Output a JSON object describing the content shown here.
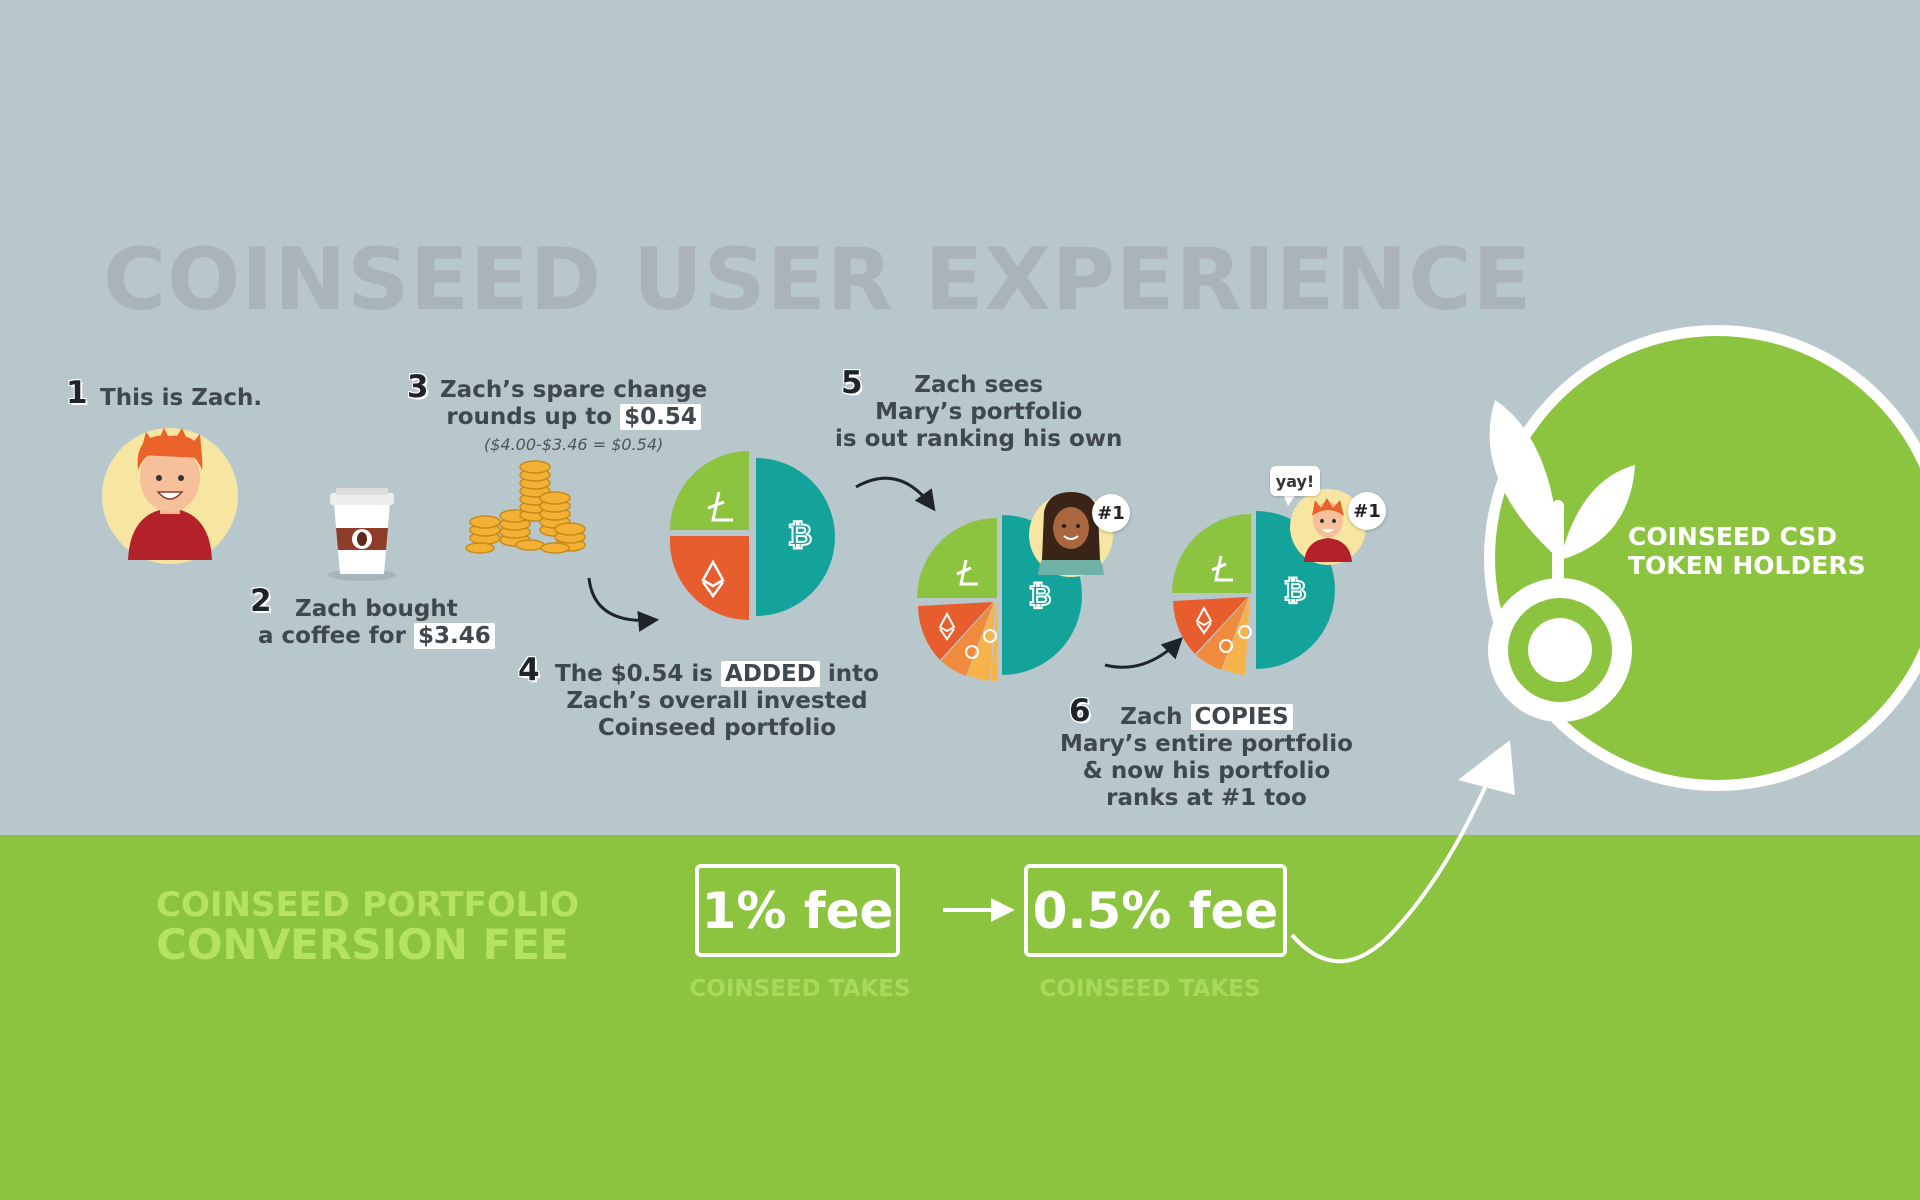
{
  "title": "COINSEED USER EXPERIENCE",
  "colors": {
    "background_top": "#b8c7cc",
    "background_bottom": "#8cc43f",
    "litecoin_green": "#8cc43f",
    "bitcoin_teal": "#14a39a",
    "ethereum_orange": "#e85d2e",
    "dash_orange": "#f08a3c",
    "monero_yellow": "#f6b24b",
    "text_dark": "#3f484c",
    "fee_label": "#b5e35f"
  },
  "steps": [
    {
      "number": "1",
      "lines": [
        "This is Zach."
      ]
    },
    {
      "number": "2",
      "lines": [
        "Zach bought",
        "a coffee for"
      ],
      "highlight": "$3.46"
    },
    {
      "number": "3",
      "lines": [
        "Zach’s spare change",
        "rounds up to"
      ],
      "highlight": "$0.54",
      "note": "($4.00-$3.46 = $0.54)"
    },
    {
      "number": "4",
      "line1_pre": "The $0.54 is",
      "line1_highlight": "ADDED",
      "line1_post": "into",
      "lines": [
        "Zach’s overall invested",
        "Coinseed portfolio"
      ]
    },
    {
      "number": "5",
      "lines": [
        "Zach sees",
        "Mary’s portfolio",
        "is out ranking his own"
      ]
    },
    {
      "number": "6",
      "line1_pre": "Zach",
      "line1_highlight": "COPIES",
      "lines": [
        "Mary’s entire portfolio",
        "& now his portfolio",
        "ranks at #1 too"
      ]
    }
  ],
  "badges": {
    "mary_rank": "#1",
    "zach_rank": "#1",
    "speech": "yay!"
  },
  "icons": [
    "zach-avatar-icon",
    "coffee-cup-icon",
    "coin-stack-icon",
    "litecoin-icon",
    "bitcoin-icon",
    "ethereum-icon",
    "dash-icon",
    "monero-icon",
    "mary-avatar-icon",
    "seedling-icon",
    "coinseed-logo-icon",
    "arrow-icon"
  ],
  "conversion": {
    "label_line1": "COINSEED PORTFOLIO",
    "label_line2": "CONVERSION FEE",
    "fee_before": "1% fee",
    "fee_after": "0.5% fee",
    "takes_before": "COINSEED TAKES",
    "takes_after": "COINSEED TAKES"
  },
  "holders": {
    "line1": "COINSEED CSD",
    "line2": "TOKEN HOLDERS"
  }
}
